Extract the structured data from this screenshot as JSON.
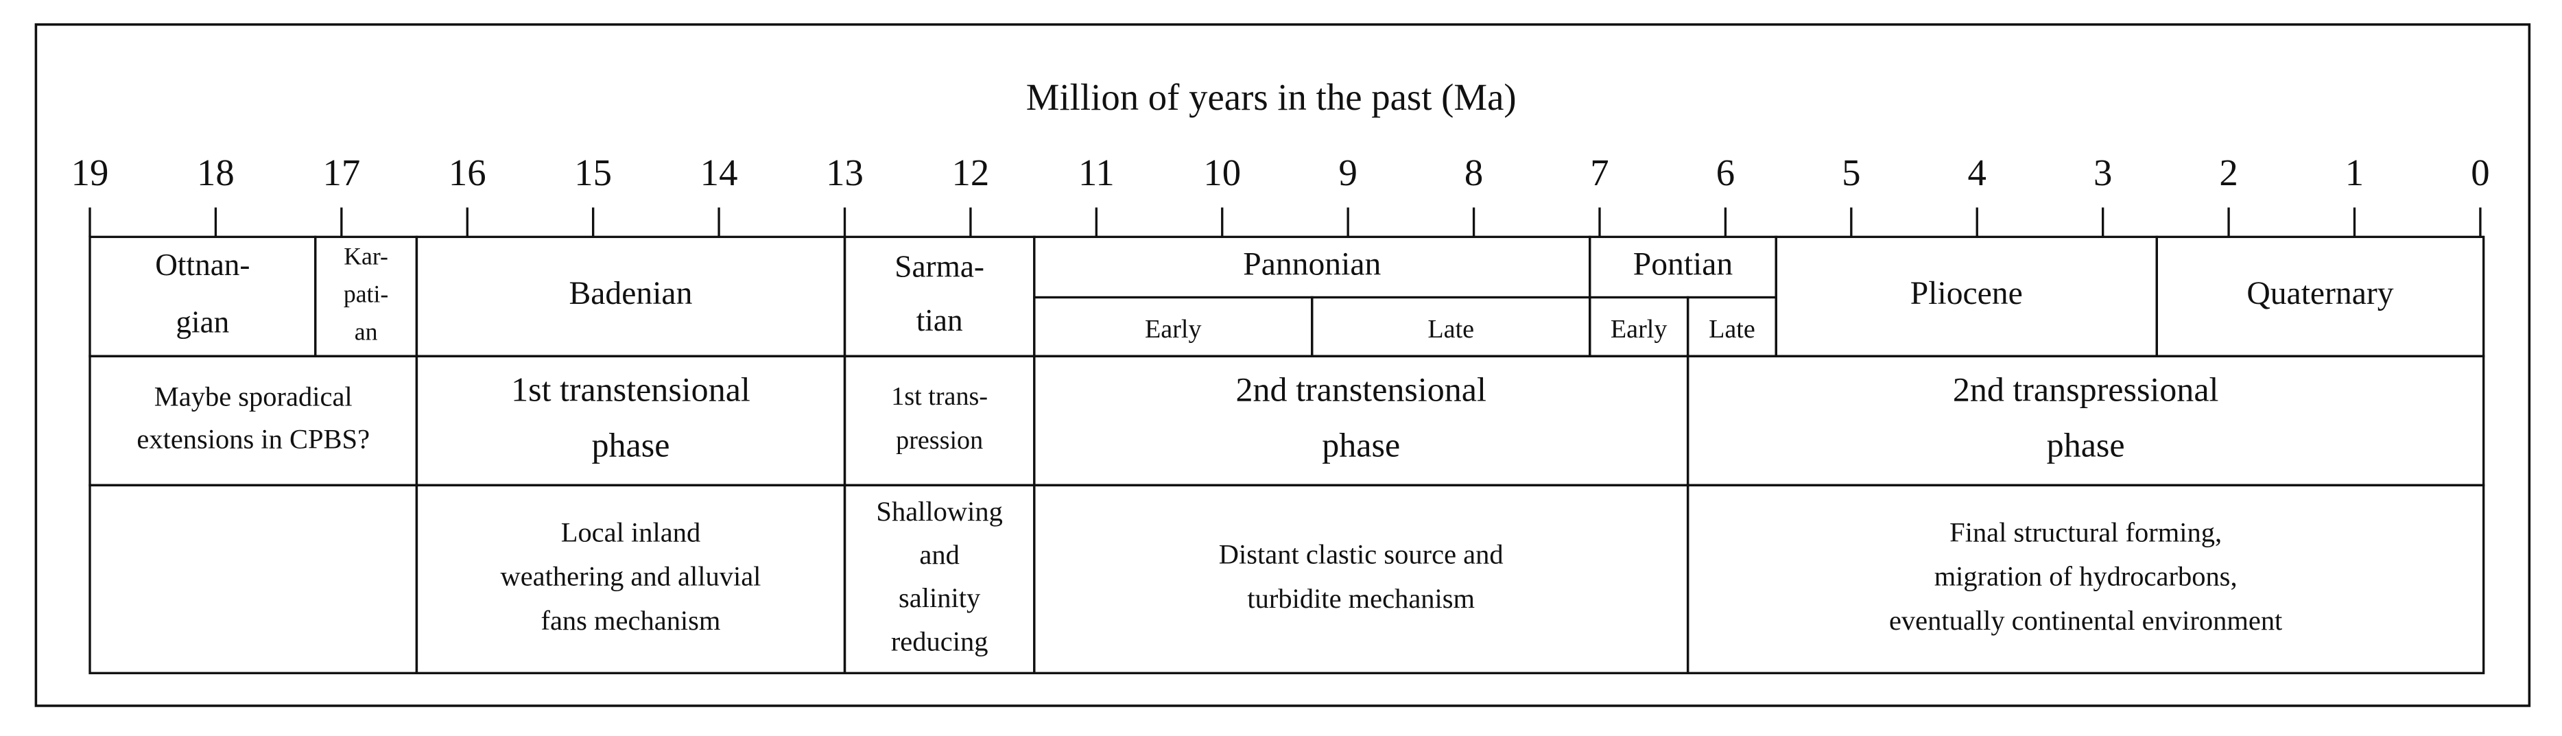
{
  "title": "Million of years in the past (Ma)",
  "ticks": [
    19,
    18,
    17,
    16,
    15,
    14,
    13,
    12,
    11,
    10,
    9,
    8,
    7,
    6,
    5,
    4,
    3,
    2,
    1,
    0
  ],
  "rows": [
    {
      "cells": [
        {
          "lines": [
            "Ottnan-",
            "gian"
          ]
        },
        {
          "lines": [
            "Kar-",
            "pati-",
            "an"
          ]
        },
        {
          "lines": [
            "Badenian"
          ]
        },
        {
          "lines": [
            "Sarma-",
            "tian"
          ]
        },
        {
          "lines": [
            "Pannonian"
          ],
          "sub": [
            {
              "lines": [
                "Early"
              ]
            },
            {
              "lines": [
                "Late"
              ]
            }
          ]
        },
        {
          "lines": [
            "Pontian"
          ],
          "sub": [
            {
              "lines": [
                "Early"
              ]
            },
            {
              "lines": [
                "Late"
              ]
            }
          ]
        },
        {
          "lines": [
            "Pliocene"
          ]
        },
        {
          "lines": [
            "Quaternary"
          ]
        }
      ]
    },
    {
      "cells": [
        {
          "lines": [
            "Maybe sporadical",
            "extensions in CPBS?"
          ]
        },
        {
          "lines": [
            "1st transtensional",
            "phase"
          ]
        },
        {
          "lines": [
            "1st trans-",
            "pression"
          ]
        },
        {
          "lines": [
            "2nd transtensional",
            "phase"
          ]
        },
        {
          "lines": [
            "2nd transpressional",
            "phase"
          ]
        }
      ]
    },
    {
      "cells": [
        {
          "lines": [
            "Local inland",
            "weathering and alluvial",
            "fans mechanism"
          ]
        },
        {
          "lines": [
            "Shallowing",
            "and",
            "salinity",
            "reducing"
          ]
        },
        {
          "lines": [
            "Distant clastic source and",
            "turbidite mechanism"
          ]
        },
        {
          "lines": [
            "Final structural forming,",
            "migration of hydrocarbons,",
            "eventually continental environment"
          ]
        }
      ]
    }
  ]
}
